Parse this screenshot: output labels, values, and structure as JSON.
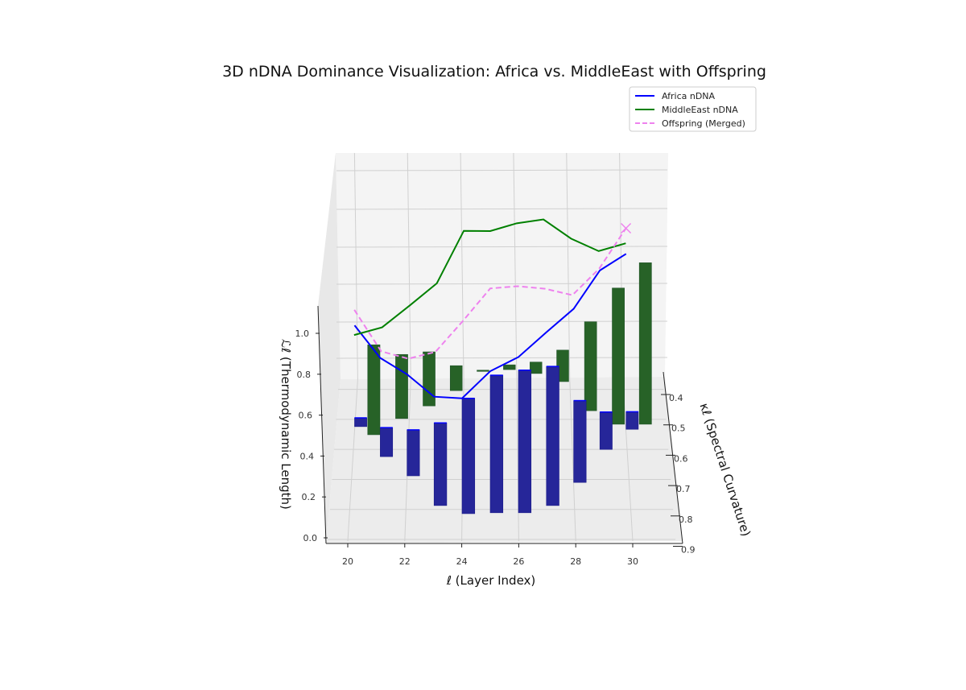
{
  "chart_data": {
    "type": "3d-bar-line",
    "title": "3D nDNA Dominance Visualization: Africa vs. MiddleEast with Offspring",
    "xlabel": "ℓ (Layer Index)",
    "ylabel": "κℓ (Spectral Curvature)",
    "zlabel": "ℒℓ (Thermodynamic Length)",
    "x_ticks": [
      20,
      22,
      24,
      26,
      28,
      30
    ],
    "y_ticks": [
      0.4,
      0.5,
      0.6,
      0.7,
      0.8,
      0.9
    ],
    "z_ticks": [
      "0.0",
      "0.2",
      "0.4",
      "0.6",
      "0.8",
      "1.0"
    ],
    "grid": true,
    "legend_position": "top-right",
    "layers": [
      20,
      21,
      22,
      23,
      24,
      25,
      26,
      27,
      28,
      29,
      30
    ],
    "series": [
      {
        "name": "Africa nDNA",
        "color": "#0000ff",
        "style": "solid",
        "kappa": [
          0.524,
          0.624,
          0.688,
          0.787,
          0.814,
          0.811,
          0.811,
          0.787,
          0.71,
          0.6,
          0.533
        ],
        "length": [
          0.52,
          0.5,
          0.51,
          0.54,
          0.57,
          0.7,
          0.77,
          0.86,
          0.87,
          0.91,
          0.9
        ]
      },
      {
        "name": "MiddleEast nDNA",
        "color": "#008000",
        "style": "solid",
        "kappa": [
          0.551,
          0.497,
          0.455,
          0.404,
          0.34,
          0.334,
          0.347,
          0.374,
          0.471,
          0.516,
          0.516
        ],
        "length": [
          0.51,
          0.47,
          0.52,
          0.56,
          0.74,
          0.73,
          0.79,
          0.85,
          0.89,
          0.89,
          0.93
        ]
      },
      {
        "name": "Offspring (Merged)",
        "color": "#ee82ee",
        "style": "dashed",
        "kappa": [
          0.538,
          0.56,
          0.572,
          0.596,
          0.577,
          0.573,
          0.579,
          0.581,
          0.59,
          0.558,
          0.525
        ],
        "length": [
          0.62,
          0.44,
          0.42,
          0.49,
          0.62,
          0.78,
          0.8,
          0.79,
          0.77,
          0.86,
          1.02
        ]
      }
    ],
    "bars": [
      {
        "group": "Africa",
        "color": "#262699",
        "kappa": [
          0.524,
          0.624,
          0.688,
          0.787,
          0.814,
          0.811,
          0.811,
          0.787,
          0.71,
          0.6,
          0.533
        ],
        "height": [
          0.045,
          0.147,
          0.231,
          0.41,
          0.57,
          0.68,
          0.705,
          0.69,
          0.41,
          0.19,
          0.09
        ]
      },
      {
        "group": "MiddleEast",
        "color": "#276227",
        "kappa": [
          0.551,
          0.497,
          0.455,
          0.404,
          0.34,
          0.334,
          0.347,
          0.374,
          0.471,
          0.516,
          0.516
        ],
        "height": [
          0.46,
          0.33,
          0.28,
          0.13,
          0.005,
          0.025,
          0.06,
          0.165,
          0.46,
          0.7,
          0.83
        ]
      }
    ]
  }
}
